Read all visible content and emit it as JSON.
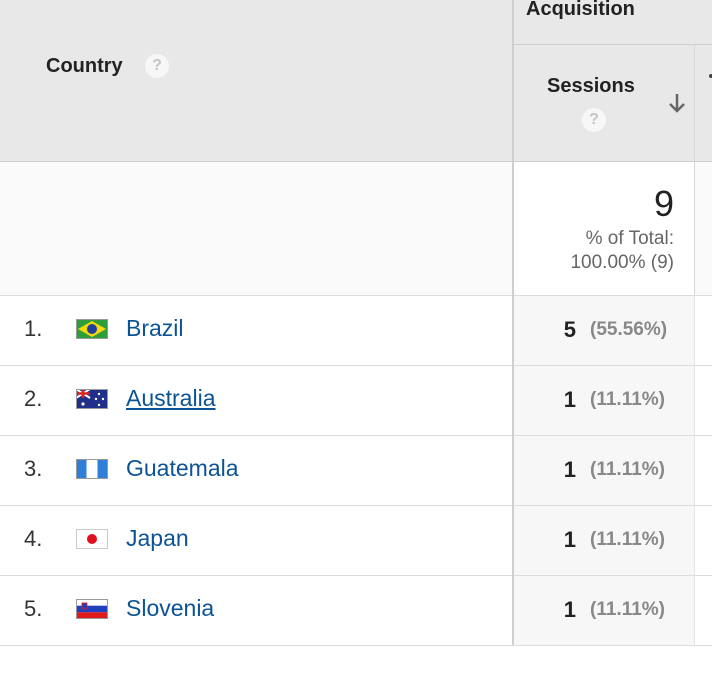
{
  "header": {
    "group_label": "Acquisition",
    "country_label": "Country",
    "sessions_label": "Sessions",
    "help_glyph": "?",
    "sort_icon": "arrow-down-icon"
  },
  "totals": {
    "value": "9",
    "pct_label": "% of Total:",
    "pct_value": "100.00% (9)"
  },
  "rows": [
    {
      "index": "1.",
      "country": "Brazil",
      "flag": "brazil-flag-icon",
      "sessions": "5",
      "pct": "(55.56%)"
    },
    {
      "index": "2.",
      "country": "Australia",
      "flag": "australia-flag-icon",
      "sessions": "1",
      "pct": "(11.11%)"
    },
    {
      "index": "3.",
      "country": "Guatemala",
      "flag": "guatemala-flag-icon",
      "sessions": "1",
      "pct": "(11.11%)"
    },
    {
      "index": "4.",
      "country": "Japan",
      "flag": "japan-flag-icon",
      "sessions": "1",
      "pct": "(11.11%)"
    },
    {
      "index": "5.",
      "country": "Slovenia",
      "flag": "slovenia-flag-icon",
      "sessions": "1",
      "pct": "(11.11%)"
    }
  ],
  "colors": {
    "link": "#0b5394",
    "header_bg": "#e8e8e8",
    "metric_bg": "#f7f7f7"
  }
}
